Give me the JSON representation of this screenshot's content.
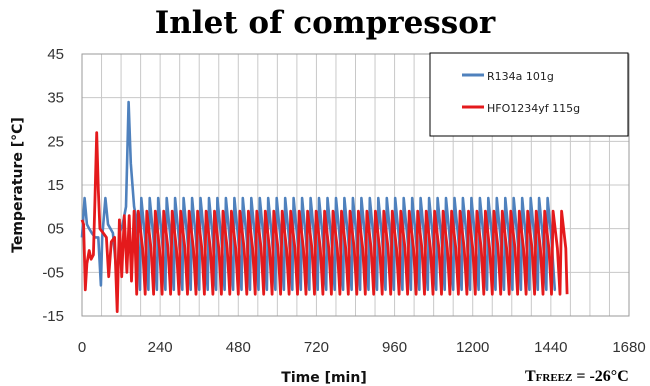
{
  "chart_data": {
    "type": "line",
    "title": "Inlet of compressor",
    "xlabel": "Time [min]",
    "ylabel": "Temperature [°C]",
    "xlim": [
      0,
      1680
    ],
    "ylim": [
      -15,
      45
    ],
    "xticks": [
      0,
      240,
      480,
      720,
      960,
      1200,
      1440,
      1680
    ],
    "xtick_labels": [
      "0",
      "240",
      "480",
      "720",
      "960",
      "1200",
      "1440",
      "1680"
    ],
    "yticks": [
      -15,
      -5,
      5,
      15,
      25,
      35,
      45
    ],
    "ytick_labels": [
      "-15",
      "-05",
      "05",
      "15",
      "25",
      "35",
      "45"
    ],
    "grid": true,
    "legend_position": "top-right",
    "series": [
      {
        "name": "R134a 101g",
        "color": "#4f81bd",
        "points": [
          [
            0,
            3
          ],
          [
            8,
            12
          ],
          [
            15,
            6
          ],
          [
            22,
            5
          ],
          [
            30,
            4
          ],
          [
            40,
            3
          ],
          [
            50,
            3
          ],
          [
            58,
            -8
          ],
          [
            62,
            3
          ],
          [
            72,
            12
          ],
          [
            80,
            6
          ],
          [
            95,
            4
          ],
          [
            108,
            -7
          ],
          [
            115,
            4
          ],
          [
            125,
            6
          ],
          [
            135,
            10
          ],
          [
            143,
            34
          ],
          [
            150,
            20
          ],
          [
            160,
            10
          ],
          [
            168,
            7
          ]
        ],
        "periodic": {
          "start": 168,
          "end": 1455,
          "period": 26,
          "peak": 12,
          "trough": -9,
          "peak_offset": 14,
          "trough_offset": 10
        }
      },
      {
        "name": "HFO1234yf 115g",
        "color": "#e41a1c",
        "points": [
          [
            0,
            7
          ],
          [
            5,
            6
          ],
          [
            10,
            -9
          ],
          [
            15,
            -3
          ],
          [
            22,
            0
          ],
          [
            28,
            -2
          ],
          [
            35,
            -1
          ],
          [
            40,
            12
          ],
          [
            45,
            27
          ],
          [
            50,
            14
          ],
          [
            55,
            5
          ],
          [
            65,
            4
          ],
          [
            75,
            3
          ],
          [
            82,
            -6
          ],
          [
            90,
            2
          ],
          [
            100,
            3
          ],
          [
            108,
            -14
          ],
          [
            115,
            7
          ],
          [
            122,
            -6
          ],
          [
            130,
            8
          ],
          [
            138,
            -5
          ],
          [
            145,
            8
          ],
          [
            152,
            -7
          ],
          [
            160,
            9
          ]
        ],
        "periodic": {
          "start": 160,
          "end": 1490,
          "period": 26,
          "peak": 9,
          "trough": -10,
          "peak_offset": 13,
          "trough_offset": 8
        }
      }
    ],
    "annotations": [
      "T",
      "FREEZ",
      " = -26°C"
    ]
  }
}
